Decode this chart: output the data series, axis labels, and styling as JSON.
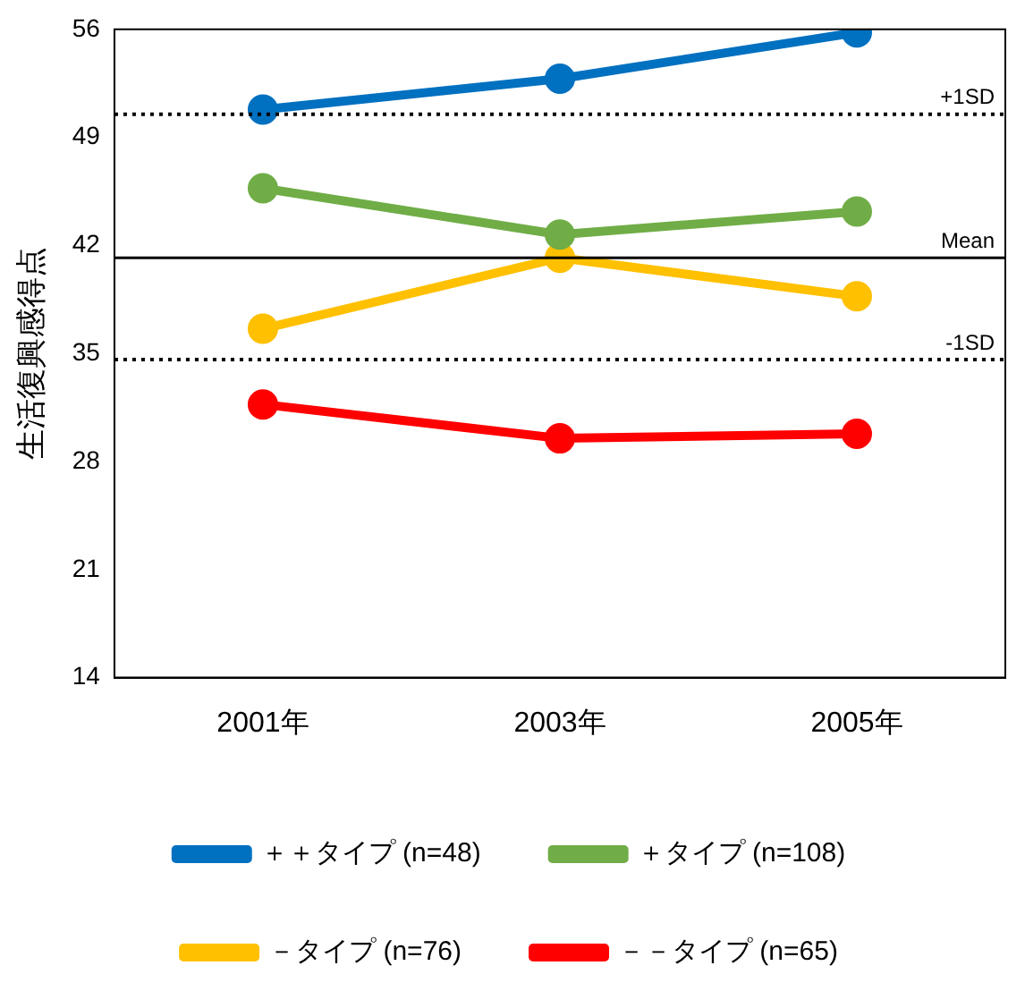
{
  "chart_data": {
    "type": "line",
    "ylabel": "生活復興感得点",
    "categories": [
      "2001年",
      "2003年",
      "2005年"
    ],
    "series": [
      {
        "name": "＋＋タイプ (n=48)",
        "color": "#0070c0",
        "values": [
          50.8,
          52.8,
          55.8
        ]
      },
      {
        "name": "＋タイプ (n=108)",
        "color": "#70ad47",
        "values": [
          45.7,
          42.7,
          44.2
        ]
      },
      {
        "name": "－タイプ (n=76)",
        "color": "#ffc000",
        "values": [
          36.6,
          41.2,
          38.7
        ]
      },
      {
        "name": "－－タイプ (n=65)",
        "color": "#ff0000",
        "values": [
          31.7,
          29.5,
          29.8
        ]
      }
    ],
    "ylim": [
      14,
      56
    ],
    "yticks": [
      14,
      21,
      28,
      35,
      42,
      49,
      56
    ],
    "grid": false,
    "legend": "bottom",
    "marker": "circle",
    "line_style": "solid",
    "ref_lines": [
      {
        "axis": "y",
        "value": 50.5,
        "label": "+1SD",
        "line_style": "dotted",
        "color": "#000000"
      },
      {
        "axis": "y",
        "value": 41.2,
        "label": "Mean",
        "line_style": "solid",
        "color": "#000000"
      },
      {
        "axis": "y",
        "value": 34.6,
        "label": "-1SD",
        "line_style": "dotted",
        "color": "#000000"
      }
    ]
  }
}
